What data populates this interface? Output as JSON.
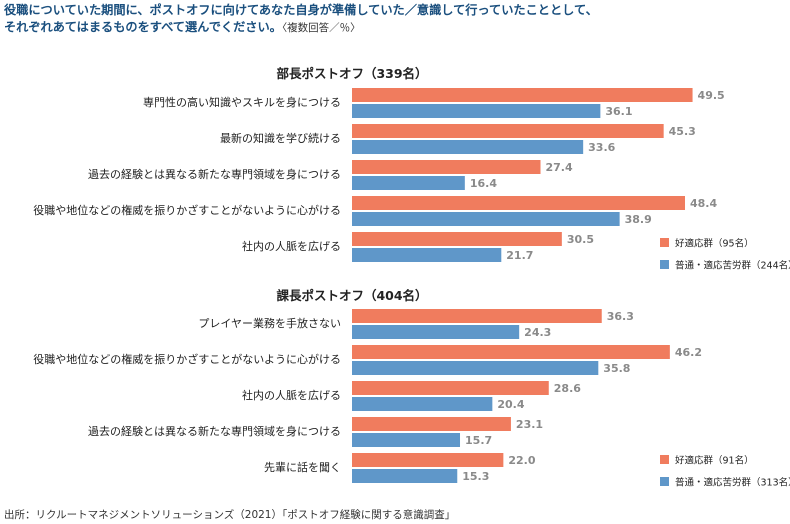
{
  "title": {
    "line1": "役職についていた期間に、ポストオフに向けてあなた自身が準備していた／意識して行っていたこととして、",
    "line2": "それぞれあてはまるものをすべて選んでください。",
    "note": "〈複数回答／％〉"
  },
  "footer": "出所：リクルートマネジメントソリューションズ（2021）「ポストオフ経験に関する意識調査」",
  "colors": {
    "series1": "#f07c5e",
    "series2": "#5f97c9"
  },
  "chart_data": [
    {
      "type": "bar",
      "orientation": "horizontal",
      "title": "部長ポストオフ（339名）",
      "categories": [
        "専門性の高い知識やスキルを身につける",
        "最新の知識を学び続ける",
        "過去の経験とは異なる新たな専門領域を身につける",
        "役職や地位などの権威を振りかざすことがないように心がける",
        "社内の人脈を広げる"
      ],
      "series": [
        {
          "name": "好適応群（95名）",
          "values": [
            49.5,
            45.3,
            27.4,
            48.4,
            30.5
          ]
        },
        {
          "name": "普通・適応苦労群（244名）",
          "values": [
            36.1,
            33.6,
            16.4,
            38.9,
            21.7
          ]
        }
      ],
      "xlim": [
        0,
        50
      ],
      "legend": "bottom-right"
    },
    {
      "type": "bar",
      "orientation": "horizontal",
      "title": "課長ポストオフ（404名）",
      "categories": [
        "プレイヤー業務を手放さない",
        "役職や地位などの権威を振りかざすことがないように心がける",
        "社内の人脈を広げる",
        "過去の経験とは異なる新たな専門領域を身につける",
        "先輩に話を聞く"
      ],
      "series": [
        {
          "name": "好適応群（91名）",
          "values": [
            36.3,
            46.2,
            28.6,
            23.1,
            22.0
          ]
        },
        {
          "name": "普通・適応苦労群（313名）",
          "values": [
            24.3,
            35.8,
            20.4,
            15.7,
            15.3
          ]
        }
      ],
      "xlim": [
        0,
        50
      ],
      "legend": "bottom-right"
    }
  ]
}
